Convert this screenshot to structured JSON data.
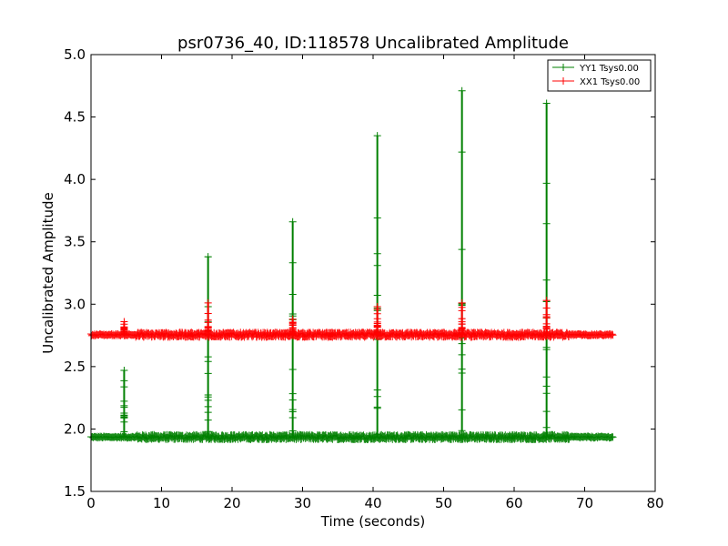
{
  "chart_data": {
    "type": "line",
    "title": "psr0736_40, ID:118578 Uncalibrated Amplitude",
    "xlabel": "Time (seconds)",
    "ylabel": "Uncalibrated Amplitude",
    "xlim": [
      0,
      80
    ],
    "ylim": [
      1.5,
      5.0
    ],
    "xticks": [
      0,
      10,
      20,
      30,
      40,
      50,
      60,
      70,
      80
    ],
    "xtick_labels": [
      "0",
      "10",
      "20",
      "30",
      "40",
      "50",
      "60",
      "70",
      "80"
    ],
    "yticks": [
      1.5,
      2.0,
      2.5,
      3.0,
      3.5,
      4.0,
      4.5,
      5.0
    ],
    "ytick_labels": [
      "1.5",
      "2.0",
      "2.5",
      "3.0",
      "3.5",
      "4.0",
      "4.5",
      "5.0"
    ],
    "grid": false,
    "legend_position": "top-right",
    "x_start": 0,
    "x_end": 74,
    "dense_region": [
      6.3,
      67.8
    ],
    "series": [
      {
        "name": "YY1 Tsys0.00",
        "color": "#008000",
        "marker": "+",
        "baseline": 1.935,
        "noise": 0.012,
        "spikes": [
          {
            "x": 4.7,
            "peak": 2.47
          },
          {
            "x": 16.6,
            "peak": 3.38
          },
          {
            "x": 28.6,
            "peak": 3.66
          },
          {
            "x": 40.6,
            "peak": 4.35
          },
          {
            "x": 52.6,
            "peak": 4.71
          },
          {
            "x": 64.6,
            "peak": 4.61
          }
        ]
      },
      {
        "name": "XX1 Tsys0.00",
        "color": "#ff0000",
        "marker": "+",
        "baseline": 2.755,
        "noise": 0.012,
        "spikes": [
          {
            "x": 4.7,
            "peak": 2.86
          },
          {
            "x": 16.6,
            "peak": 3.01
          },
          {
            "x": 28.6,
            "peak": 2.88
          },
          {
            "x": 40.6,
            "peak": 2.98
          },
          {
            "x": 52.6,
            "peak": 3.01
          },
          {
            "x": 64.6,
            "peak": 3.03
          }
        ]
      }
    ]
  }
}
